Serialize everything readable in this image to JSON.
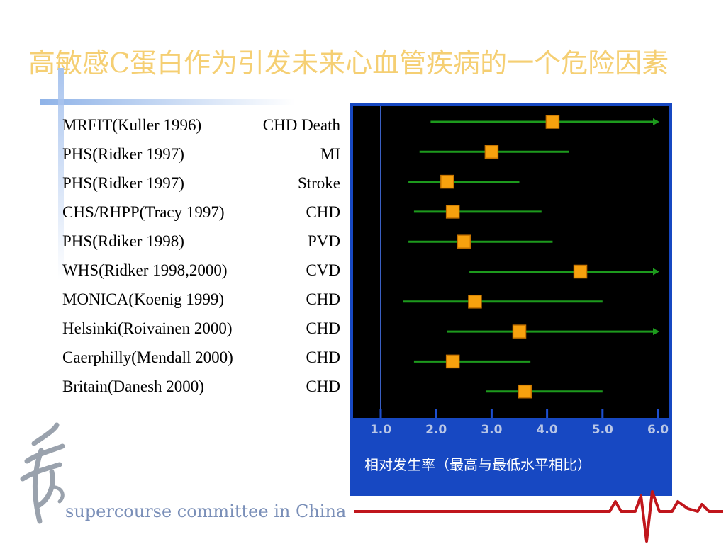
{
  "title": "高敏感C蛋白作为引发未来心血管疾病的一个危险因素",
  "rows": [
    {
      "study": "MRFIT(Kuller 1996)",
      "outcome": "CHD Death"
    },
    {
      "study": "PHS(Ridker 1997)",
      "outcome": "MI"
    },
    {
      "study": "PHS(Ridker 1997)",
      "outcome": "Stroke"
    },
    {
      "study": "CHS/RHPP(Tracy 1997)",
      "outcome": "CHD"
    },
    {
      "study": "PHS(Rdiker  1998)",
      "outcome": "PVD"
    },
    {
      "study": "WHS(Ridker 1998,2000)",
      "outcome": "CVD"
    },
    {
      "study": "MONICA(Koenig 1999)",
      "outcome": "CHD"
    },
    {
      "study": "Helsinki(Roivainen 2000)",
      "outcome": "CHD"
    },
    {
      "study": "Caerphilly(Mendall 2000)",
      "outcome": "CHD"
    },
    {
      "study": "Britain(Danesh 2000)",
      "outcome": "CHD"
    }
  ],
  "chart_data": {
    "type": "scatter",
    "xlabel": "相对发生率（最高与最低水平相比）",
    "xlim": [
      0.5,
      6.2
    ],
    "reference_line": 1.0,
    "x_ticks": [
      "1.0",
      "2.0",
      "3.0",
      "4.0",
      "5.0",
      "6.0"
    ],
    "x_tick_values": [
      1,
      2,
      3,
      4,
      5,
      6
    ],
    "points": [
      {
        "estimate": 4.1,
        "lower": 1.9,
        "upper": 6.0,
        "arrow": true
      },
      {
        "estimate": 3.0,
        "lower": 1.7,
        "upper": 4.4,
        "arrow": false
      },
      {
        "estimate": 2.2,
        "lower": 1.5,
        "upper": 3.5,
        "arrow": false
      },
      {
        "estimate": 2.3,
        "lower": 1.6,
        "upper": 3.9,
        "arrow": false
      },
      {
        "estimate": 2.5,
        "lower": 1.5,
        "upper": 4.1,
        "arrow": false
      },
      {
        "estimate": 4.6,
        "lower": 2.6,
        "upper": 6.0,
        "arrow": true
      },
      {
        "estimate": 2.7,
        "lower": 1.4,
        "upper": 5.0,
        "arrow": false
      },
      {
        "estimate": 3.5,
        "lower": 2.2,
        "upper": 6.0,
        "arrow": true
      },
      {
        "estimate": 2.3,
        "lower": 1.6,
        "upper": 3.7,
        "arrow": false
      },
      {
        "estimate": 3.6,
        "lower": 2.9,
        "upper": 5.0,
        "arrow": false
      }
    ]
  },
  "footer": "supercourse committee in China",
  "colors": {
    "title": "#f5cf73",
    "panel": "#1748c2",
    "plot_bg": "#000000",
    "ci_line": "#1d9a1d",
    "marker": "#f7a10e",
    "tick_text": "#b9c6e6"
  }
}
